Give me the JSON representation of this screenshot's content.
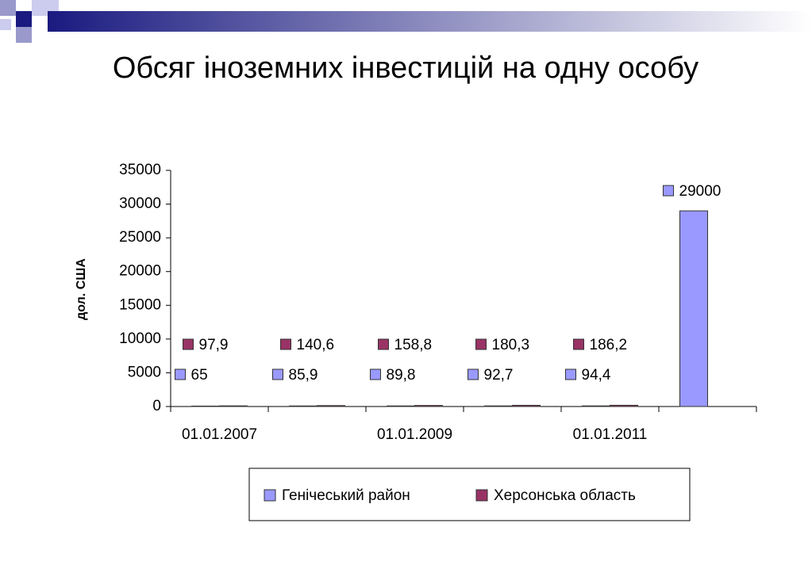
{
  "chart_data": {
    "type": "bar",
    "title": "Обсяг іноземних інвестицій на одну особу",
    "y_label": "дол. США",
    "categories": [
      "01.01.2007",
      null,
      "01.01.2009",
      null,
      "01.01.2011",
      null
    ],
    "series": [
      {
        "name": "Генічеський район",
        "color": "#9999ff",
        "values": [
          65,
          85.9,
          89.8,
          92.7,
          94.4,
          29000
        ],
        "value_labels": [
          "65",
          "85,9",
          "89,8",
          "92,7",
          "94,4",
          "29000"
        ]
      },
      {
        "name": "Херсонська область",
        "color": "#993366",
        "values": [
          97.9,
          140.6,
          158.8,
          180.3,
          186.2,
          null
        ],
        "value_labels": [
          "97,9",
          "140,6",
          "158,8",
          "180,3",
          "186,2",
          null
        ]
      }
    ],
    "ylim": [
      0,
      35000
    ],
    "yticks": [
      0,
      5000,
      10000,
      15000,
      20000,
      25000,
      30000,
      35000
    ],
    "legend": "bottom"
  }
}
